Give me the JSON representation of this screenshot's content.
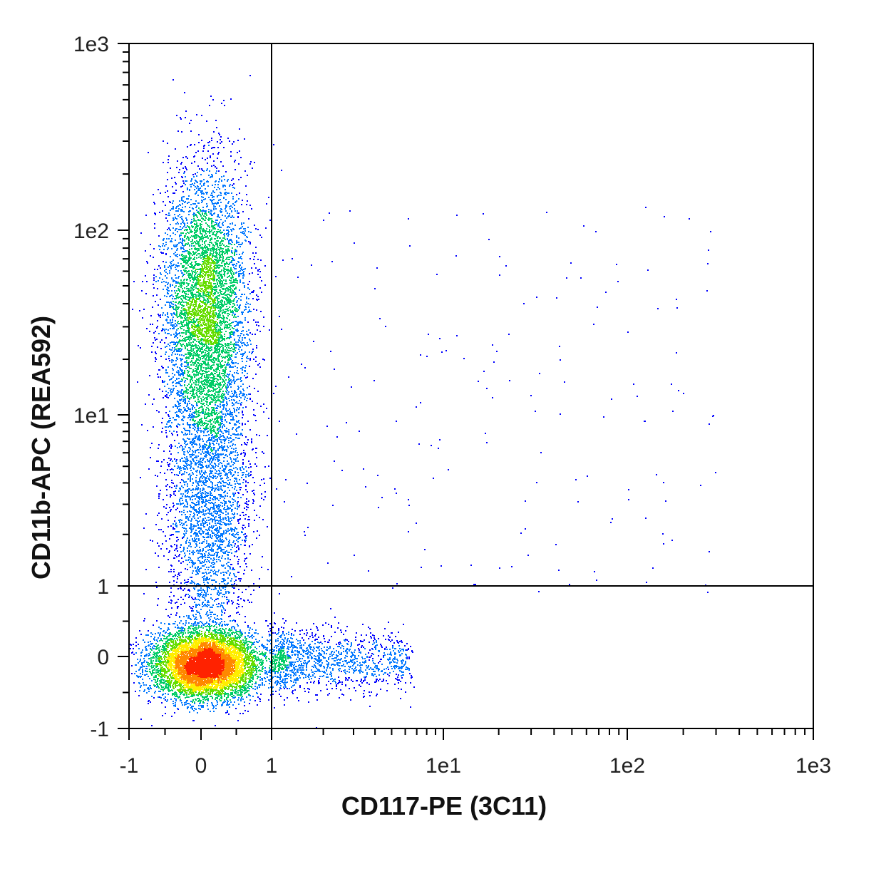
{
  "chart_data": {
    "type": "scatter",
    "subtype": "flow-cytometry-density-dot-plot",
    "title": "",
    "xlabel": "CD117-PE (3C11)",
    "ylabel": "CD11b-APC (REA592)",
    "xscale": "hybrid-linear-log",
    "yscale": "hybrid-linear-log",
    "xlim": [
      -1,
      1000
    ],
    "ylim": [
      -1,
      1000
    ],
    "x_ticks": [
      {
        "value": -1,
        "label": "-1"
      },
      {
        "value": 0,
        "label": "0"
      },
      {
        "value": 1,
        "label": "1"
      },
      {
        "value": 10,
        "label": "1e1"
      },
      {
        "value": 100,
        "label": "1e2"
      },
      {
        "value": 1000,
        "label": "1e3"
      }
    ],
    "y_ticks": [
      {
        "value": -1,
        "label": "-1"
      },
      {
        "value": 0,
        "label": "0"
      },
      {
        "value": 1,
        "label": "1"
      },
      {
        "value": 10,
        "label": "1e1"
      },
      {
        "value": 100,
        "label": "1e2"
      },
      {
        "value": 1000,
        "label": "1e3"
      }
    ],
    "quadrant_gate": {
      "x": 1,
      "y": 1
    },
    "grid": false,
    "legend": "none",
    "density_colors": [
      "#0000ff",
      "#0077ff",
      "#00cc66",
      "#66dd00",
      "#ffee00",
      "#ff8800",
      "#ff2200"
    ],
    "populations": [
      {
        "x_center": 0.05,
        "y_center": -0.1,
        "spread_x": 0.22,
        "spread_y": 0.22,
        "weight": 0.45,
        "peak_density": "high"
      },
      {
        "x_center": 0.05,
        "y_center": 40,
        "spread_x": 0.25,
        "y_range": [
          5,
          200
        ],
        "weight": 0.35,
        "peak_density": "medium"
      },
      {
        "x_center": 0.1,
        "y_center": 2.5,
        "spread_x": 0.3,
        "y_range": [
          0.8,
          8
        ],
        "weight": 0.12,
        "peak_density": "low"
      },
      {
        "x_range": [
          1,
          8
        ],
        "y_center": -0.1,
        "spread_y": 0.25,
        "weight": 0.05,
        "peak_density": "low"
      },
      {
        "x_range": [
          1,
          300
        ],
        "y_range": [
          1,
          120
        ],
        "weight": 0.005,
        "peak_density": "sparse"
      }
    ]
  }
}
